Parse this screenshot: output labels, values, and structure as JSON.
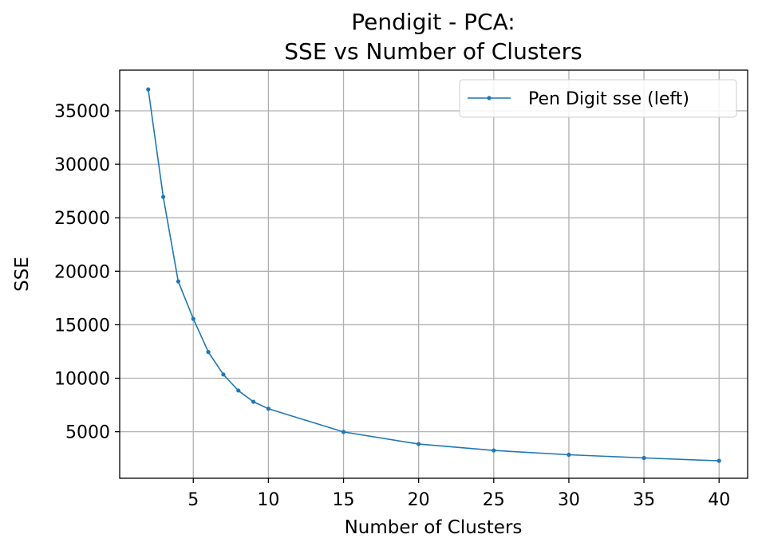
{
  "chart_data": {
    "type": "line",
    "title_line1": "Pendigit - PCA:",
    "title_line2": "SSE vs Number of Clusters",
    "xlabel": "Number of Clusters",
    "ylabel": "SSE",
    "xlim": [
      0.1,
      41.9
    ],
    "ylim": [
      650,
      38800
    ],
    "xticks": [
      5,
      10,
      15,
      20,
      25,
      30,
      35,
      40
    ],
    "yticks": [
      5000,
      10000,
      15000,
      20000,
      25000,
      30000,
      35000
    ],
    "grid": true,
    "legend_position": "top-right",
    "series": [
      {
        "name": "Pen Digit sse (left)",
        "color": "#1f77b4",
        "x": [
          2,
          3,
          4,
          5,
          6,
          7,
          8,
          9,
          10,
          15,
          20,
          25,
          30,
          35,
          40
        ],
        "y": [
          37000,
          26950,
          19050,
          15550,
          12450,
          10350,
          8850,
          7800,
          7150,
          4980,
          3850,
          3250,
          2850,
          2550,
          2280
        ]
      }
    ]
  }
}
